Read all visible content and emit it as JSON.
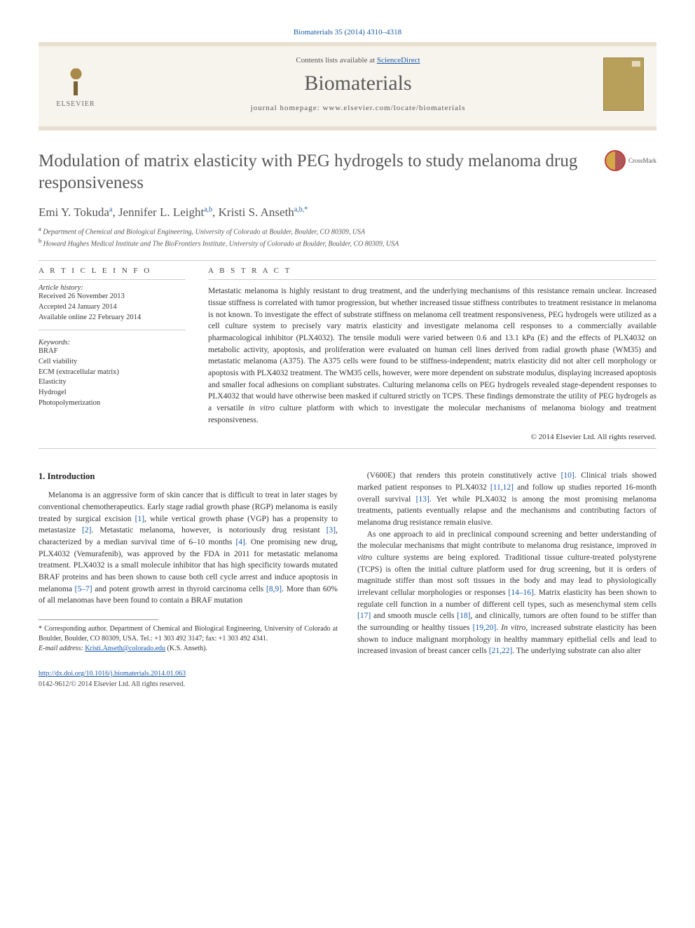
{
  "citation": "Biomaterials 35 (2014) 4310–4318",
  "header": {
    "contents_prefix": "Contents lists available at ",
    "contents_link": "ScienceDirect",
    "journal": "Biomaterials",
    "homepage_prefix": "journal homepage: ",
    "homepage_url": "www.elsevier.com/locate/biomaterials",
    "publisher": "ELSEVIER"
  },
  "title": "Modulation of matrix elasticity with PEG hydrogels to study melanoma drug responsiveness",
  "crossmark": "CrossMark",
  "authors_html": "Emi Y. Tokuda",
  "authors": [
    {
      "name": "Emi Y. Tokuda",
      "sup": "a"
    },
    {
      "name": "Jennifer L. Leight",
      "sup": "a,b"
    },
    {
      "name": "Kristi S. Anseth",
      "sup": "a,b,*"
    }
  ],
  "affiliations": [
    {
      "sup": "a",
      "text": "Department of Chemical and Biological Engineering, University of Colorado at Boulder, Boulder, CO 80309, USA"
    },
    {
      "sup": "b",
      "text": "Howard Hughes Medical Institute and The BioFrontiers Institute, University of Colorado at Boulder, Boulder, CO 80309, USA"
    }
  ],
  "info_label": "A R T I C L E   I N F O",
  "abstract_label": "A B S T R A C T",
  "history": {
    "label": "Article history:",
    "received": "Received 26 November 2013",
    "accepted": "Accepted 24 January 2014",
    "online": "Available online 22 February 2014"
  },
  "keywords_label": "Keywords:",
  "keywords": [
    "BRAF",
    "Cell viability",
    "ECM (extracellular matrix)",
    "Elasticity",
    "Hydrogel",
    "Photopolymerization"
  ],
  "abstract": "Metastatic melanoma is highly resistant to drug treatment, and the underlying mechanisms of this resistance remain unclear. Increased tissue stiffness is correlated with tumor progression, but whether increased tissue stiffness contributes to treatment resistance in melanoma is not known. To investigate the effect of substrate stiffness on melanoma cell treatment responsiveness, PEG hydrogels were utilized as a cell culture system to precisely vary matrix elasticity and investigate melanoma cell responses to a commercially available pharmacological inhibitor (PLX4032). The tensile moduli were varied between 0.6 and 13.1 kPa (E) and the effects of PLX4032 on metabolic activity, apoptosis, and proliferation were evaluated on human cell lines derived from radial growth phase (WM35) and metastatic melanoma (A375). The A375 cells were found to be stiffness-independent; matrix elasticity did not alter cell morphology or apoptosis with PLX4032 treatment. The WM35 cells, however, were more dependent on substrate modulus, displaying increased apoptosis and smaller focal adhesions on compliant substrates. Culturing melanoma cells on PEG hydrogels revealed stage-dependent responses to PLX4032 that would have otherwise been masked if cultured strictly on TCPS. These findings demonstrate the utility of PEG hydrogels as a versatile in vitro culture platform with which to investigate the molecular mechanisms of melanoma biology and treatment responsiveness.",
  "copyright": "© 2014 Elsevier Ltd. All rights reserved.",
  "intro_heading": "1. Introduction",
  "col1_para": "Melanoma is an aggressive form of skin cancer that is difficult to treat in later stages by conventional chemotherapeutics. Early stage radial growth phase (RGP) melanoma is easily treated by surgical excision [1], while vertical growth phase (VGP) has a propensity to metastasize [2]. Metastatic melanoma, however, is notoriously drug resistant [3], characterized by a median survival time of 6–10 months [4]. One promising new drug, PLX4032 (Vemurafenib), was approved by the FDA in 2011 for metastatic melanoma treatment. PLX4032 is a small molecule inhibitor that has high specificity towards mutated BRAF proteins and has been shown to cause both cell cycle arrest and induce apoptosis in melanoma [5–7] and potent growth arrest in thyroid carcinoma cells [8,9]. More than 60% of all melanomas have been found to contain a BRAF mutation",
  "col2_para1": "(V600E) that renders this protein constitutively active [10]. Clinical trials showed marked patient responses to PLX4032 [11,12] and follow up studies reported 16-month overall survival [13]. Yet while PLX4032 is among the most promising melanoma treatments, patients eventually relapse and the mechanisms and contributing factors of melanoma drug resistance remain elusive.",
  "col2_para2": "As one approach to aid in preclinical compound screening and better understanding of the molecular mechanisms that might contribute to melanoma drug resistance, improved in vitro culture systems are being explored. Traditional tissue culture-treated polystyrene (TCPS) is often the initial culture platform used for drug screening, but it is orders of magnitude stiffer than most soft tissues in the body and may lead to physiologically irrelevant cellular morphologies or responses [14–16]. Matrix elasticity has been shown to regulate cell function in a number of different cell types, such as mesenchymal stem cells [17] and smooth muscle cells [18], and clinically, tumors are often found to be stiffer than the surrounding or healthy tissues [19,20]. In vitro, increased substrate elasticity has been shown to induce malignant morphology in healthy mammary epithelial cells and lead to increased invasion of breast cancer cells [21,22]. The underlying substrate can also alter",
  "footnote": {
    "corr": "* Corresponding author. Department of Chemical and Biological Engineering, University of Colorado at Boulder, Boulder, CO 80309, USA. Tel.: +1 303 492 3147; fax: +1 303 492 4341.",
    "email_label": "E-mail address: ",
    "email": "Kristi.Anseth@colorado.edu",
    "email_suffix": " (K.S. Anseth)."
  },
  "doi": {
    "url": "http://dx.doi.org/10.1016/j.biomaterials.2014.01.063",
    "issn": "0142-9612/© 2014 Elsevier Ltd. All rights reserved."
  },
  "colors": {
    "link": "#1a5aa8",
    "header_bg": "#f7f4ed",
    "header_border": "#e8e0d0"
  }
}
